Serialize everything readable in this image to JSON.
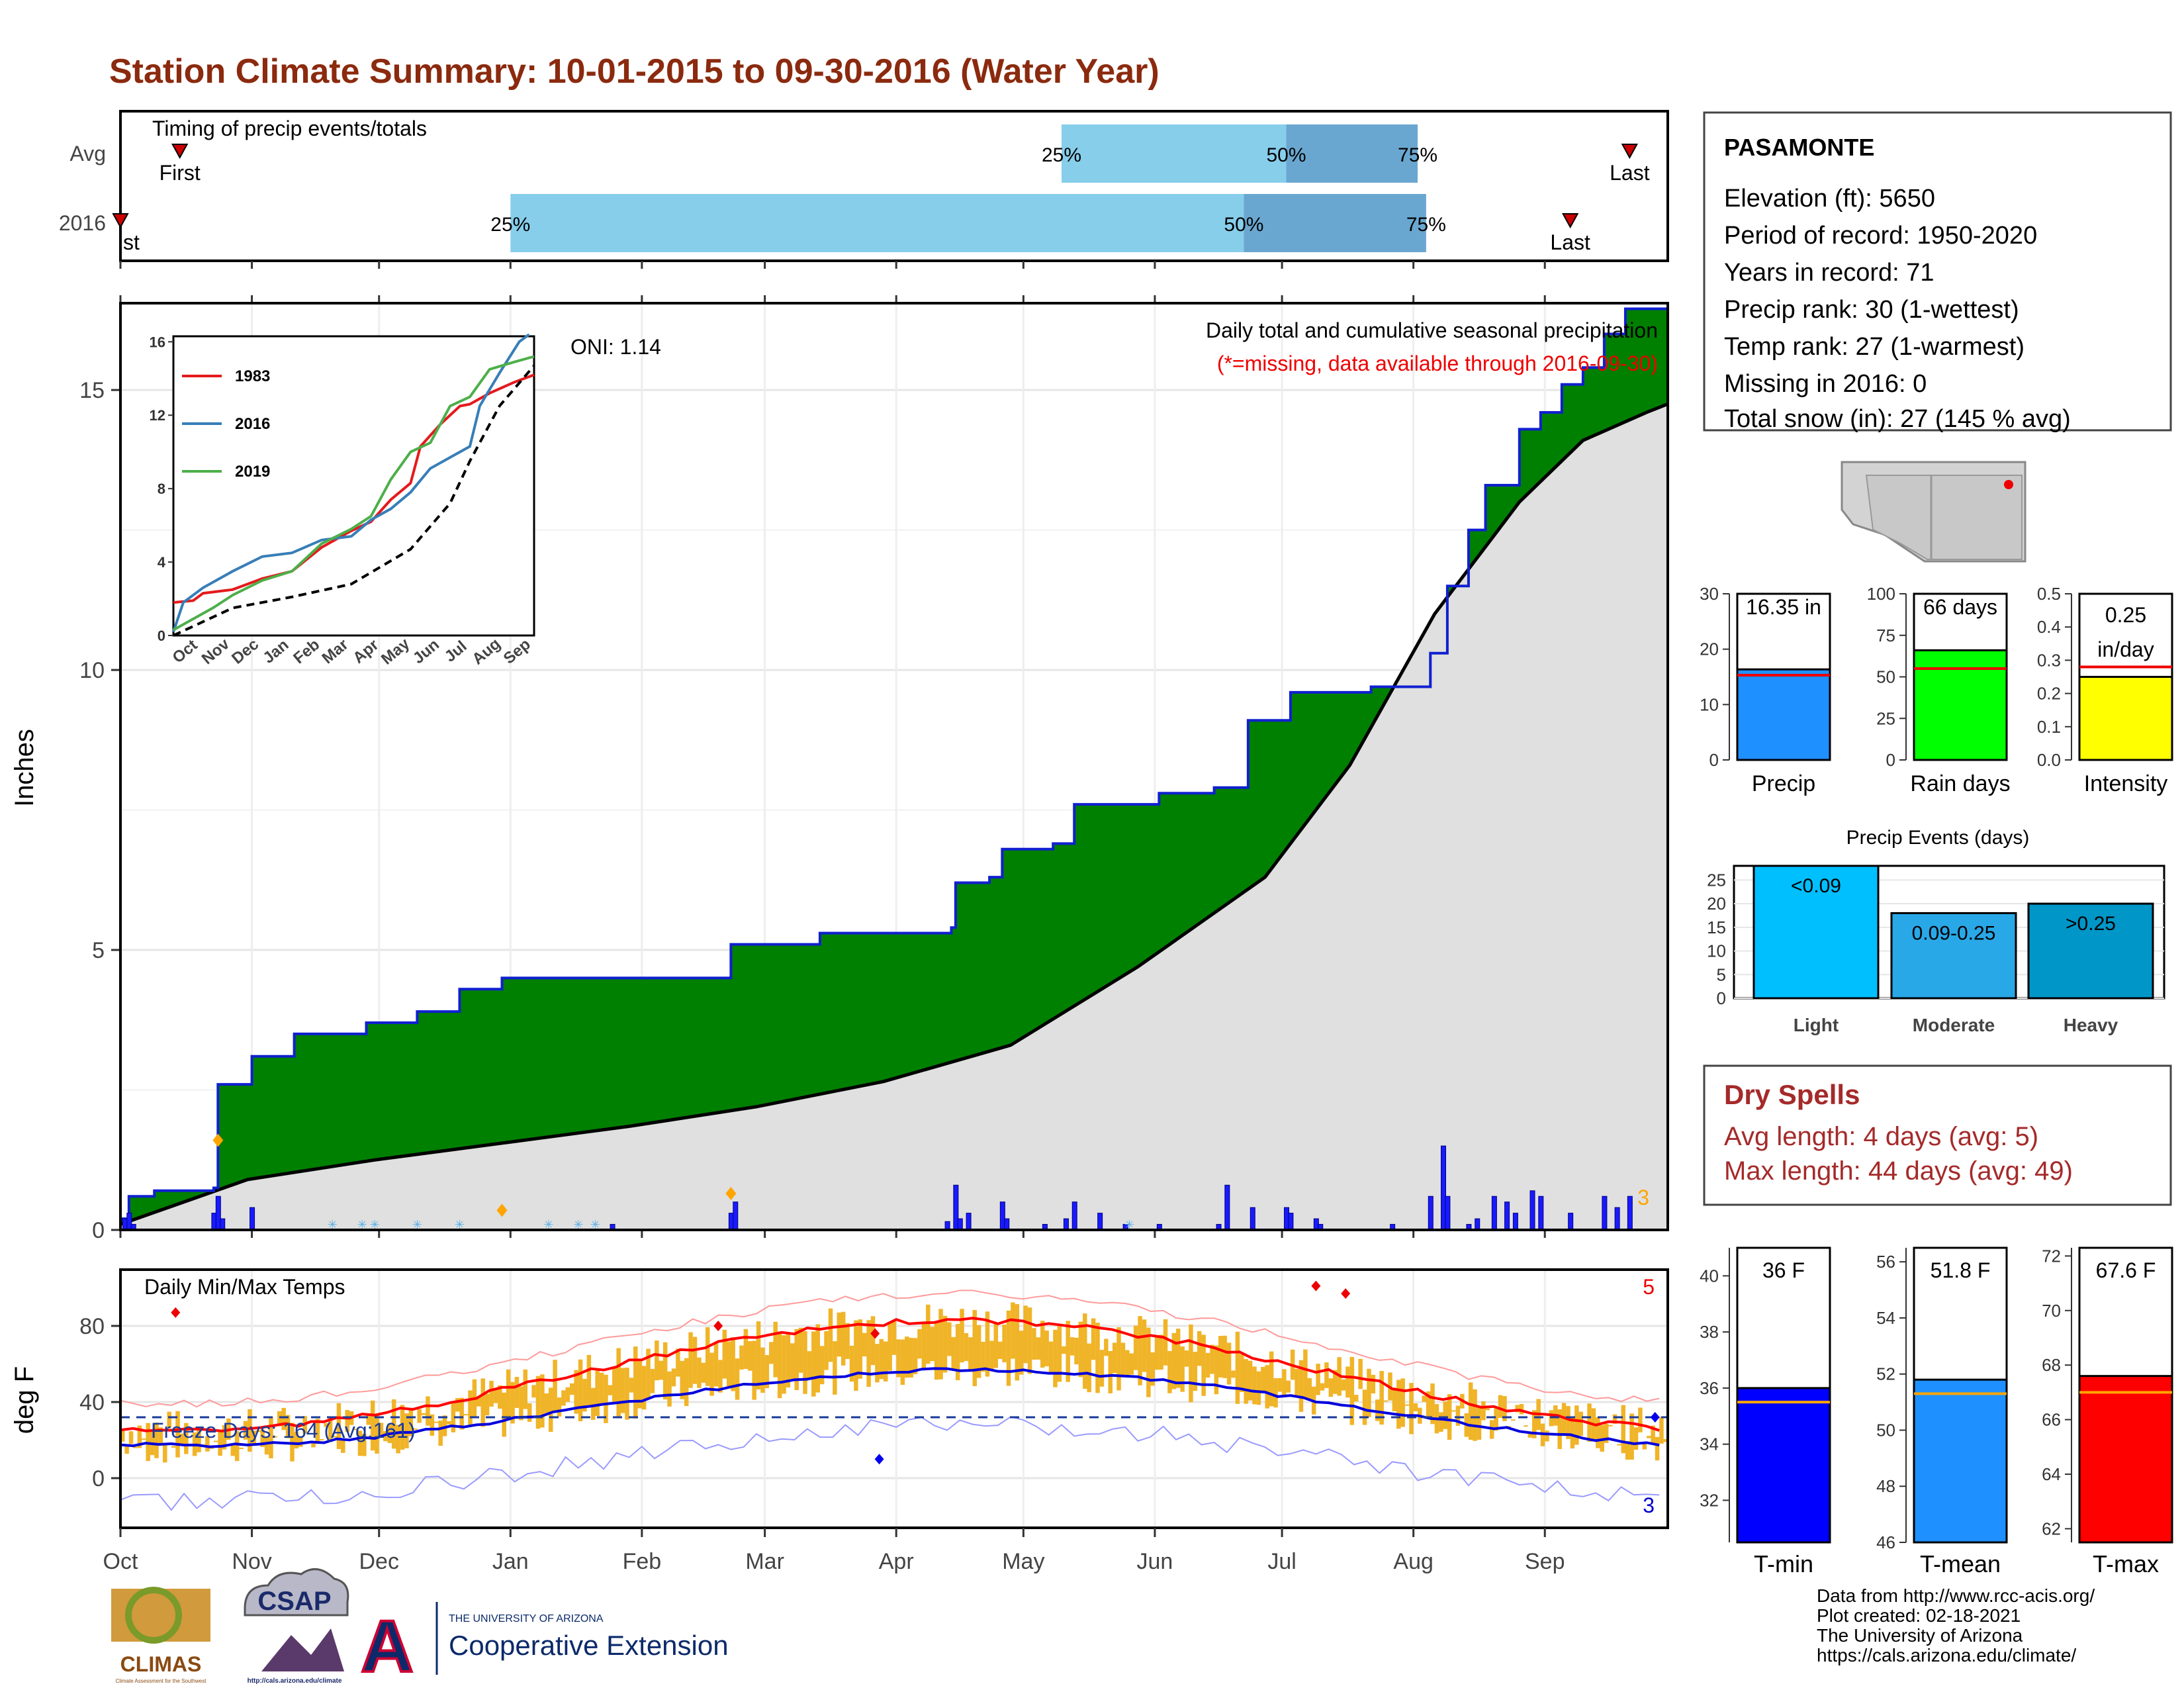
{
  "title": "Station Climate Summary: 10-01-2015 to 09-30-2016 (Water Year)",
  "colors": {
    "title": "#8b2a0e",
    "precip_fill": "#008000",
    "precip_line": "#1020d0",
    "avg_fill": "#e0e0e0",
    "bar_light": "#00bfff",
    "bar_moderate": "#29a8e8",
    "bar_heavy": "#0096c8",
    "temp_band": "#f0b428",
    "tmax_avg": "#ff0000",
    "tmin_avg": "#0000dd",
    "quartile_light": "#87ceeb",
    "quartile_dark": "#6aa7d0",
    "dryspell": "#a52a2a"
  },
  "months": [
    "Oct",
    "Nov",
    "Dec",
    "Jan",
    "Feb",
    "Mar",
    "Apr",
    "May",
    "Jun",
    "Jul",
    "Aug",
    "Sep"
  ],
  "timing": {
    "label": "Timing of precip events/totals",
    "rows": [
      "Avg",
      "2016"
    ],
    "first_label": "First",
    "last_label": "Last",
    "first_truncated": "st",
    "q25": "25%",
    "q50": "50%",
    "q75": "75%",
    "avg_pos": {
      "first": 14,
      "q25": 222,
      "q50": 275,
      "q75": 306,
      "last": 356
    },
    "y2016_pos": {
      "first": 0,
      "q25": 92,
      "q50": 265,
      "q75": 308,
      "last": 342
    }
  },
  "precip_panel": {
    "ylabel": "Inches",
    "yticks": [
      "0",
      "5",
      "10",
      "15"
    ],
    "heading": "Daily total and cumulative seasonal precipitation",
    "note": "(*=missing, data available through 2016-09-30)",
    "oni": "ONI: 1.14",
    "corner_count": "3",
    "cumulative_2016": [
      [
        0,
        0.2
      ],
      [
        2,
        0.6
      ],
      [
        8,
        0.7
      ],
      [
        22,
        0.75
      ],
      [
        23,
        2.6
      ],
      [
        31,
        3.1
      ],
      [
        40,
        3.1
      ],
      [
        41,
        3.5
      ],
      [
        58,
        3.7
      ],
      [
        70,
        3.9
      ],
      [
        80,
        4.3
      ],
      [
        90,
        4.5
      ],
      [
        96,
        4.5
      ],
      [
        144,
        5.1
      ],
      [
        165,
        5.3
      ],
      [
        196,
        5.4
      ],
      [
        197,
        6.2
      ],
      [
        205,
        6.3
      ],
      [
        208,
        6.8
      ],
      [
        220,
        6.9
      ],
      [
        225,
        7.6
      ],
      [
        237,
        7.6
      ],
      [
        245,
        7.8
      ],
      [
        258,
        7.9
      ],
      [
        266,
        9.1
      ],
      [
        276,
        9.6
      ],
      [
        295,
        9.7
      ],
      [
        300,
        9.7
      ],
      [
        309,
        10.3
      ],
      [
        313,
        11.5
      ],
      [
        318,
        12.5
      ],
      [
        322,
        13.3
      ],
      [
        330,
        14.3
      ],
      [
        335,
        14.6
      ],
      [
        340,
        15.1
      ],
      [
        345,
        15.4
      ],
      [
        350,
        16.0
      ],
      [
        355,
        16.45
      ],
      [
        365,
        16.35
      ]
    ],
    "average_cum": [
      [
        0,
        0.1
      ],
      [
        30,
        0.9
      ],
      [
        60,
        1.25
      ],
      [
        90,
        1.55
      ],
      [
        120,
        1.85
      ],
      [
        150,
        2.2
      ],
      [
        180,
        2.65
      ],
      [
        210,
        3.3
      ],
      [
        240,
        4.7
      ],
      [
        270,
        6.3
      ],
      [
        290,
        8.3
      ],
      [
        310,
        11.0
      ],
      [
        330,
        13.0
      ],
      [
        345,
        14.1
      ],
      [
        360,
        14.6
      ],
      [
        365,
        14.75
      ]
    ],
    "daily_bars": [
      [
        1,
        0.2
      ],
      [
        2,
        0.3
      ],
      [
        3,
        0.1
      ],
      [
        22,
        0.3
      ],
      [
        23,
        0.6
      ],
      [
        24,
        0.2
      ],
      [
        31,
        0.4
      ],
      [
        116,
        0.1
      ],
      [
        144,
        0.3
      ],
      [
        145,
        0.5
      ],
      [
        195,
        0.15
      ],
      [
        197,
        0.8
      ],
      [
        198,
        0.2
      ],
      [
        200,
        0.3
      ],
      [
        208,
        0.5
      ],
      [
        209,
        0.2
      ],
      [
        218,
        0.1
      ],
      [
        223,
        0.2
      ],
      [
        225,
        0.5
      ],
      [
        231,
        0.3
      ],
      [
        237,
        0.1
      ],
      [
        245,
        0.1
      ],
      [
        259,
        0.1
      ],
      [
        261,
        0.8
      ],
      [
        267,
        0.4
      ],
      [
        275,
        0.4
      ],
      [
        276,
        0.3
      ],
      [
        282,
        0.2
      ],
      [
        283,
        0.1
      ],
      [
        300,
        0.1
      ],
      [
        309,
        0.6
      ],
      [
        312,
        1.5
      ],
      [
        313,
        0.6
      ],
      [
        318,
        0.1
      ],
      [
        320,
        0.2
      ],
      [
        324,
        0.6
      ],
      [
        327,
        0.5
      ],
      [
        329,
        0.3
      ],
      [
        333,
        0.7
      ],
      [
        335,
        0.6
      ],
      [
        342,
        0.3
      ],
      [
        350,
        0.6
      ],
      [
        353,
        0.4
      ],
      [
        356,
        0.6
      ]
    ]
  },
  "inset": {
    "yticks": [
      "0",
      "4",
      "8",
      "12",
      "16"
    ],
    "legend": [
      "1983",
      "2016",
      "2019"
    ],
    "colors": [
      "#e41a1c",
      "#377eb8",
      "#4daf4a"
    ]
  },
  "temp_panel": {
    "label": "Daily Min/Max Temps",
    "ylabel": "deg F",
    "yticks": [
      "0",
      "40",
      "80"
    ],
    "freeze": "Freeze Days: 164 (Avg:161)",
    "top_count": "5",
    "bottom_count": "3"
  },
  "station": {
    "name": "PASAMONTE",
    "lines": [
      "Elevation (ft): 5650",
      "Period of record: 1950-2020",
      "Years in record: 71",
      "Precip rank: 30 (1-wettest)",
      "Temp rank: 27 (1-warmest)",
      "Missing in 2016: 0",
      "Total snow (in): 27 (145 % avg)"
    ]
  },
  "summary_bars": [
    {
      "label": "Precip",
      "value": 16.35,
      "avg": 15.3,
      "max": 30,
      "ticks": [
        "0",
        "10",
        "20",
        "30"
      ],
      "text": "16.35 in",
      "color": "#1e90ff"
    },
    {
      "label": "Rain days",
      "value": 66,
      "avg": 55,
      "max": 100,
      "ticks": [
        "0",
        "25",
        "50",
        "75",
        "100"
      ],
      "text": "66 days",
      "color": "#00ff00"
    },
    {
      "label": "Intensity",
      "value": 0.25,
      "avg": 0.28,
      "max": 0.5,
      "ticks": [
        "0.0",
        "0.1",
        "0.2",
        "0.3",
        "0.4",
        "0.5"
      ],
      "text": "0.25",
      "text2": "in/day",
      "color": "#ffff00"
    }
  ],
  "events": {
    "title": "Precip Events (days)",
    "yticks": [
      "0",
      "5",
      "10",
      "15",
      "20",
      "25"
    ],
    "bars": [
      {
        "label": "Light",
        "range": "<0.09",
        "value": 28,
        "color": "#00bfff"
      },
      {
        "label": "Moderate",
        "range": "0.09-0.25",
        "value": 18,
        "color": "#29a8e8"
      },
      {
        "label": "Heavy",
        "range": ">0.25",
        "value": 20,
        "color": "#0096c8"
      }
    ]
  },
  "dryspells": {
    "title": "Dry Spells",
    "avg": "Avg length: 4 days (avg: 5)",
    "max": "Max length: 44 days (avg: 49)"
  },
  "temp_bars": [
    {
      "label": "T-min",
      "value": 36,
      "avg": 35.5,
      "min": 30.5,
      "max": 41,
      "ticks": [
        "32",
        "34",
        "36",
        "38",
        "40"
      ],
      "text": "36 F",
      "color": "#0000ff"
    },
    {
      "label": "T-mean",
      "value": 51.8,
      "avg": 51.3,
      "min": 46,
      "max": 56.5,
      "ticks": [
        "46",
        "48",
        "50",
        "52",
        "54",
        "56"
      ],
      "text": "51.8 F",
      "color": "#1e90ff"
    },
    {
      "label": "T-max",
      "value": 67.6,
      "avg": 67,
      "min": 61.5,
      "max": 72.3,
      "ticks": [
        "62",
        "64",
        "66",
        "68",
        "70",
        "72"
      ],
      "text": "67.6 F",
      "color": "#ff0000"
    }
  ],
  "credits": [
    "Data from http://www.rcc-acis.org/",
    "Plot created: 02-18-2021",
    "The University of Arizona",
    "https://cals.arizona.edu/climate/"
  ],
  "logos": {
    "climas": "CLIMAS",
    "climas_small": "Climate Assessment for the Southwest",
    "csap": "CSAP",
    "csap_url": "http://cals.arizona.edu/climate",
    "ua_letter": "A",
    "ua_small": "THE UNIVERSITY OF ARIZONA",
    "coop": "Cooperative Extension"
  }
}
